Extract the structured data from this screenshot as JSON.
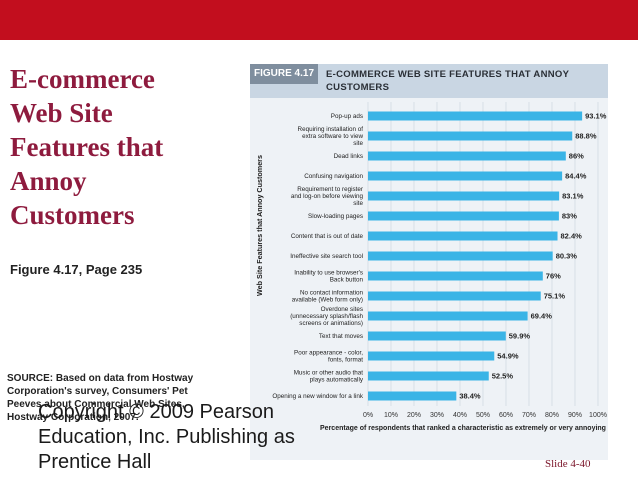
{
  "slide": {
    "title": "E-commerce\nWeb Site\nFeatures that\nAnnoy\nCustomers",
    "figure_ref": "Figure 4.17, Page 235",
    "source": "SOURCE: Based on data from Hostway\nCorporation's survey, Consumers' Pet\nPeeves about Commercial Web Sites,\nHostway Corporation, 2007.",
    "copyright": "Copyright © 2009 Pearson\nEducation, Inc.  Publishing as\nPrentice Hall",
    "slide_number": "Slide 4-40",
    "accent_color": "#c20e1e",
    "title_color": "#8e1b3e"
  },
  "figure": {
    "label": "FIGURE 4.17",
    "caption": "E-COMMERCE WEB SITE FEATURES THAT ANNOY\nCUSTOMERS"
  },
  "chart_data": {
    "type": "bar",
    "orientation": "horizontal",
    "categories": [
      "Pop-up ads",
      "Requiring installation of extra software to view site",
      "Dead links",
      "Confusing navigation",
      "Requirement to register and log-on before viewing site",
      "Slow-loading pages",
      "Content that is out of date",
      "Ineffective site search tool",
      "Inability to use browser's Back button",
      "No contact information available (Web form only)",
      "Overdone sites (unnecessary splash/flash screens or animations)",
      "Text that moves",
      "Poor appearance - color, fonts, format",
      "Music or other audio that plays automatically",
      "Opening a new window for a link"
    ],
    "values": [
      93.1,
      88.8,
      86,
      84.4,
      83.1,
      83,
      82.4,
      80.3,
      76,
      75.1,
      69.4,
      59.9,
      54.9,
      52.5,
      38.4
    ],
    "value_labels": [
      "93.1%",
      "88.8%",
      "86%",
      "84.4%",
      "83.1%",
      "83%",
      "82.4%",
      "80.3%",
      "76%",
      "75.1%",
      "69.4%",
      "59.9%",
      "54.9%",
      "52.5%",
      "38.4%"
    ],
    "xticks": [
      "0%",
      "10%",
      "20%",
      "30%",
      "40%",
      "50%",
      "60%",
      "70%",
      "80%",
      "90%",
      "100%"
    ],
    "xlim": [
      0,
      100
    ],
    "xlabel": "Percentage of respondents that ranked a characteristic as extremely or very annoying",
    "ylabel": "Web Site Features that Annoy Customers",
    "bar_color": "#3ab4e6",
    "grid": true
  }
}
